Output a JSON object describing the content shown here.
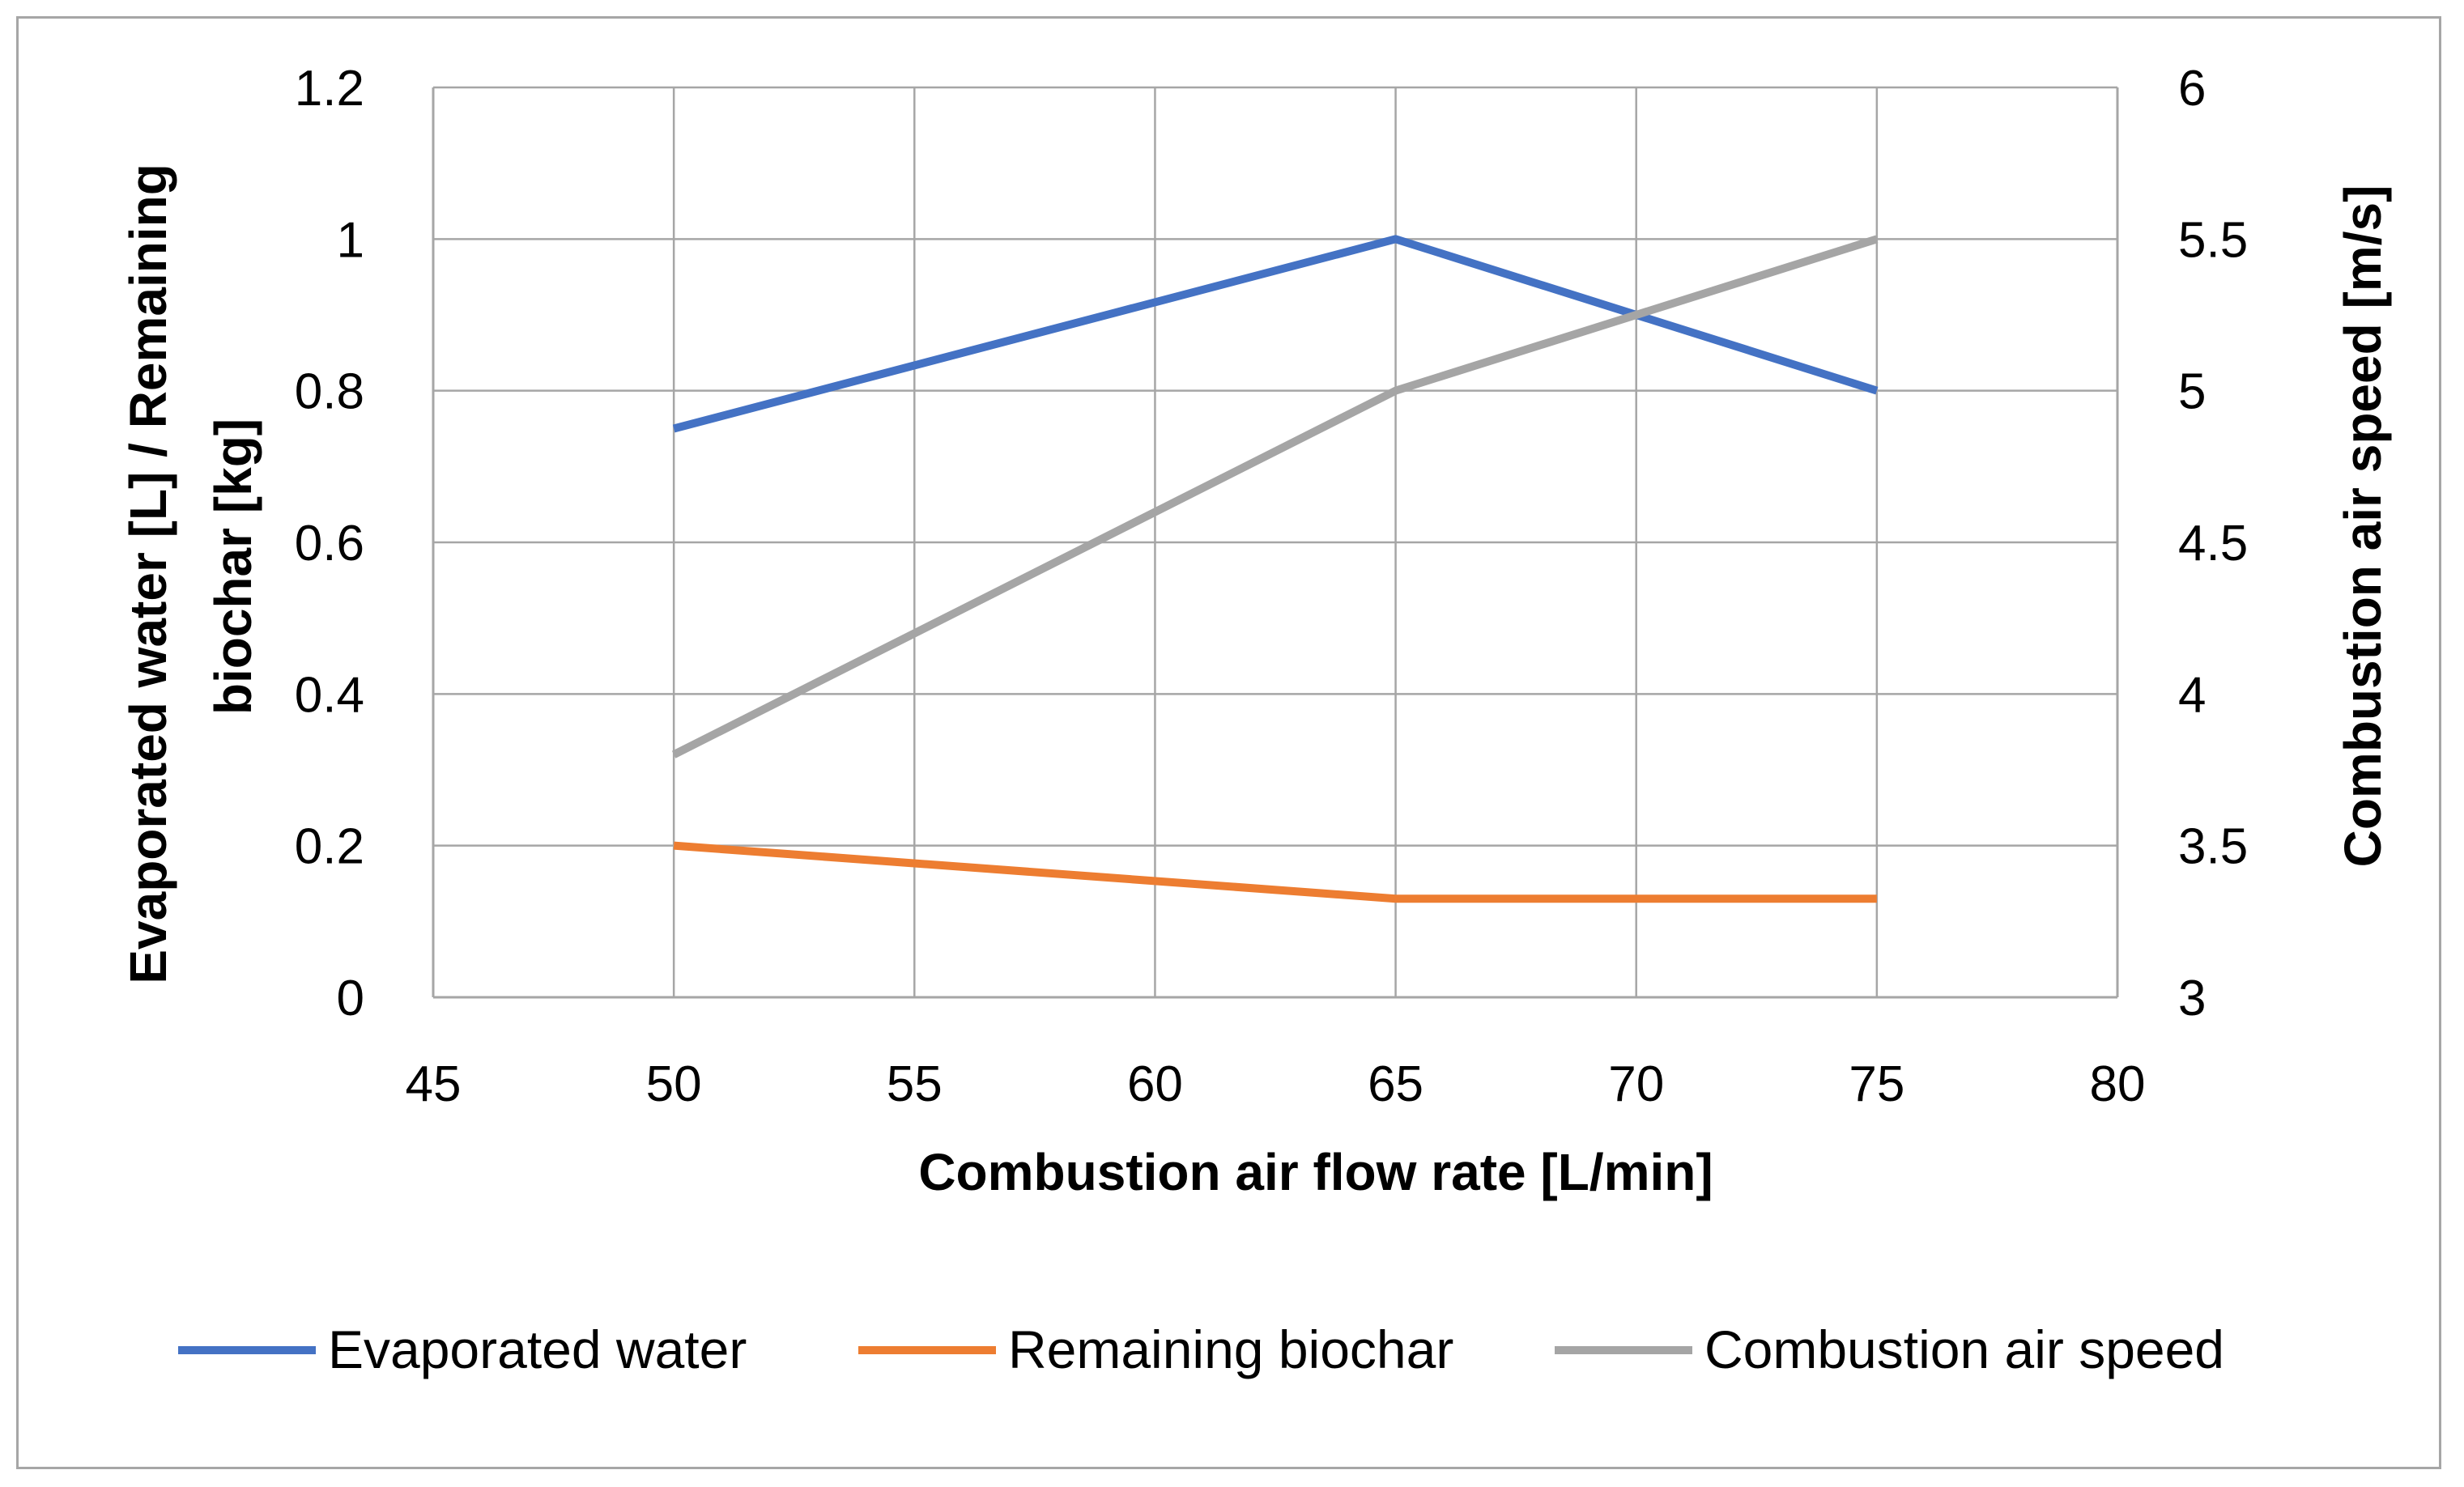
{
  "chart_data": {
    "type": "line",
    "title": "",
    "xlabel": "Combustion air flow rate [L/min]",
    "ylabel": "Evaporated water [L] / Remaining biochar [kg]",
    "ylabel_lines": [
      "Evaporated water [L] / Remaining",
      "biochar [kg]"
    ],
    "y2label": "Combustion air speed [m/s]",
    "xlim": [
      45,
      80
    ],
    "ylim": [
      0,
      1.2
    ],
    "y2lim": [
      3,
      6
    ],
    "x_ticks": [
      "45",
      "50",
      "55",
      "60",
      "65",
      "70",
      "75",
      "80"
    ],
    "y_ticks": [
      "0",
      "0.2",
      "0.4",
      "0.6",
      "0.8",
      "1",
      "1.2"
    ],
    "y2_ticks": [
      "3",
      "3.5",
      "4",
      "4.5",
      "5",
      "5.5",
      "6"
    ],
    "grid": true,
    "legend_position": "bottom",
    "series": [
      {
        "name": "Evaporated water",
        "axis": "left",
        "color": "#4472c4",
        "x": [
          50,
          65,
          75
        ],
        "y": [
          0.75,
          1.0,
          0.8
        ]
      },
      {
        "name": "Remaining biochar",
        "axis": "left",
        "color": "#ed7d31",
        "x": [
          50,
          65,
          75
        ],
        "y": [
          0.2,
          0.13,
          0.13
        ]
      },
      {
        "name": "Combustion air speed",
        "axis": "right",
        "color": "#a5a5a5",
        "x": [
          50,
          65,
          75
        ],
        "y": [
          3.8,
          5.0,
          5.5
        ]
      }
    ]
  }
}
